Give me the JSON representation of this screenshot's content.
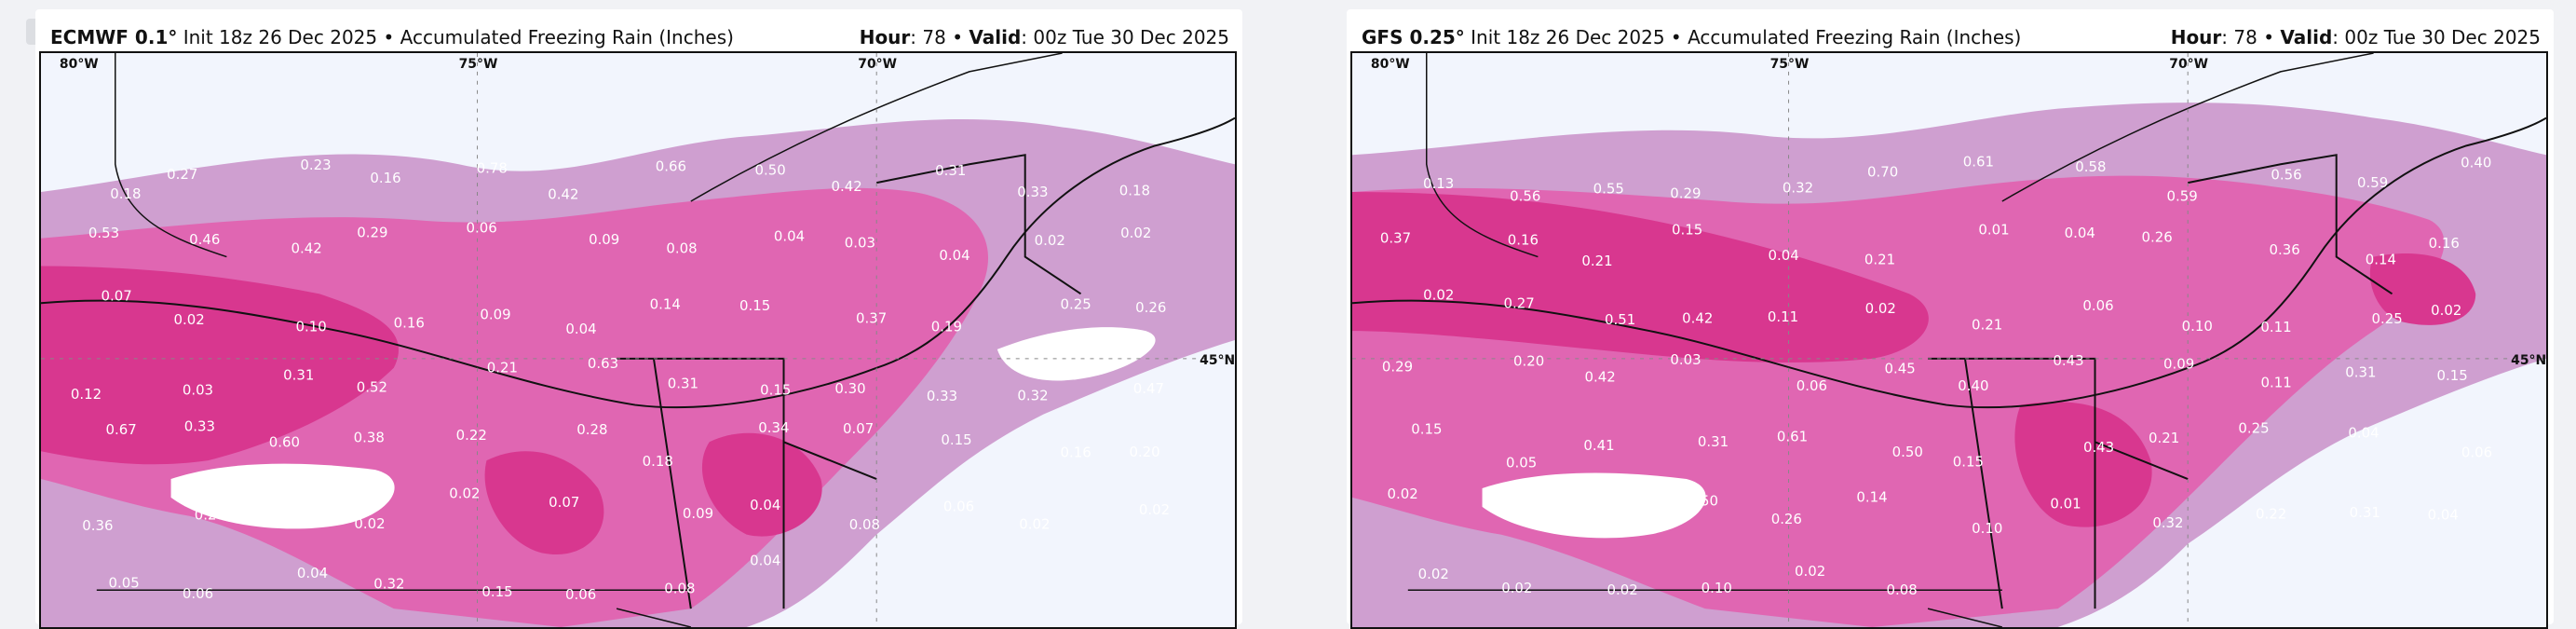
{
  "panels": [
    {
      "model": "ECMWF 0.1°",
      "init": "Init 18z 26 Dec 2025",
      "field": "Accumulated Freezing Rain (Inches)",
      "hour_label": "Hour",
      "hour": "78",
      "valid_label": "Valid",
      "valid": "00z Tue 30 Dec 2025",
      "ticks": [
        "80°W",
        "75°W",
        "70°W",
        "45°N"
      ],
      "values": [
        "0.18",
        "0.27",
        "0.23",
        "0.16",
        "0.78",
        "0.42",
        "0.66",
        "0.50",
        "0.42",
        "0.31",
        "0.33",
        "0.18",
        "0.53",
        "0.46",
        "0.42",
        "0.29",
        "0.06",
        "0.09",
        "0.08",
        "0.04",
        "0.03",
        "0.04",
        "0.02",
        "0.02",
        "0.07",
        "0.02",
        "0.10",
        "0.16",
        "0.09",
        "0.04",
        "0.14",
        "0.15",
        "0.37",
        "0.19",
        "0.25",
        "0.26",
        "0.12",
        "0.03",
        "0.31",
        "0.52",
        "0.21",
        "0.63",
        "0.31",
        "0.15",
        "0.30",
        "0.33",
        "0.32",
        "0.47",
        "0.67",
        "0.33",
        "0.60",
        "0.38",
        "0.22",
        "0.28",
        "0.18",
        "0.34",
        "0.07",
        "0.15",
        "0.16",
        "0.20",
        "0.36",
        "0.28",
        "0.17",
        "0.02",
        "0.02",
        "0.07",
        "0.09",
        "0.04",
        "0.08",
        "0.06",
        "0.02",
        "0.02",
        "0.05",
        "0.06",
        "0.04",
        "0.32",
        "0.15",
        "0.06",
        "0.08",
        "0.04"
      ]
    },
    {
      "model": "GFS 0.25°",
      "init": "Init 18z 26 Dec 2025",
      "field": "Accumulated Freezing Rain (Inches)",
      "hour_label": "Hour",
      "hour": "78",
      "valid_label": "Valid",
      "valid": "00z Tue 30 Dec 2025",
      "ticks": [
        "80°W",
        "75°W",
        "70°W",
        "45°N"
      ],
      "values": [
        "0.13",
        "0.56",
        "0.55",
        "0.29",
        "0.32",
        "0.70",
        "0.61",
        "0.58",
        "0.59",
        "0.56",
        "0.59",
        "0.40",
        "0.37",
        "0.16",
        "0.21",
        "0.15",
        "0.04",
        "0.21",
        "0.01",
        "0.04",
        "0.26",
        "0.36",
        "0.14",
        "0.16",
        "0.02",
        "0.27",
        "0.51",
        "0.42",
        "0.11",
        "0.02",
        "0.21",
        "0.06",
        "0.10",
        "0.11",
        "0.25",
        "0.02",
        "0.29",
        "0.20",
        "0.42",
        "0.03",
        "0.06",
        "0.45",
        "0.40",
        "0.43",
        "0.09",
        "0.11",
        "0.31",
        "0.15",
        "0.15",
        "0.05",
        "0.41",
        "0.31",
        "0.61",
        "0.50",
        "0.15",
        "0.43",
        "0.21",
        "0.25",
        "0.04",
        "0.06",
        "0.02",
        "0.10",
        "0.44",
        "0.50",
        "0.26",
        "0.14",
        "0.10",
        "0.01",
        "0.32",
        "0.22",
        "0.31",
        "0.04",
        "0.02",
        "0.02",
        "0.02",
        "0.10",
        "0.02",
        "0.08"
      ]
    }
  ],
  "colors": {
    "light": "#cf9fd0",
    "medium": "#e066b2",
    "heavy": "#d8378f",
    "background": "#f2f5fd"
  }
}
